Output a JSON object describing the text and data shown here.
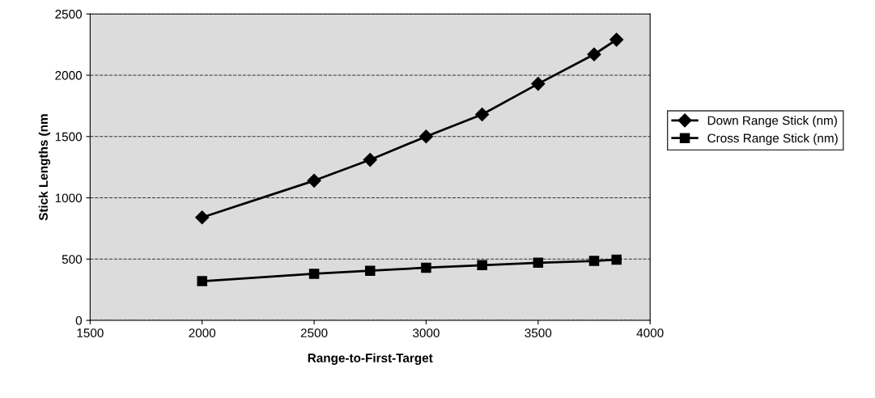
{
  "chart_data": {
    "type": "line",
    "xlabel": "Range-to-First-Target",
    "ylabel": "Stick Lengths (nm",
    "x": [
      2000,
      2500,
      2750,
      3000,
      3250,
      3500,
      3750,
      3850
    ],
    "series": [
      {
        "name": "Down Range Stick (nm)",
        "color": "#000000",
        "marker": "diamond",
        "values": [
          840,
          1140,
          1310,
          1500,
          1680,
          1930,
          2170,
          2290
        ]
      },
      {
        "name": "Cross Range Stick (nm)",
        "color": "#000000",
        "marker": "square",
        "values": [
          320,
          380,
          405,
          430,
          450,
          470,
          485,
          495
        ]
      }
    ],
    "xlim": [
      1500,
      4000
    ],
    "xticks": [
      1500,
      2000,
      2500,
      3000,
      3500,
      4000
    ],
    "ylim": [
      0,
      2500
    ],
    "yticks": [
      0,
      500,
      1000,
      1500,
      2000,
      2500
    ],
    "grid": "y",
    "line_style": "solid",
    "legend": "right"
  }
}
